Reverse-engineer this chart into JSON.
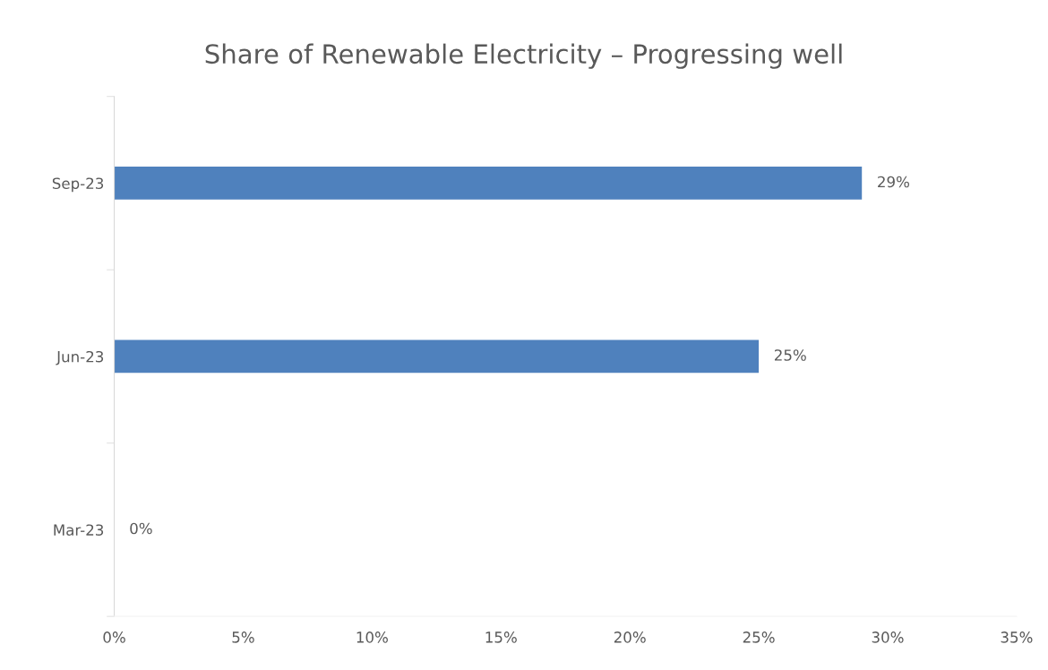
{
  "chart_data": {
    "type": "bar",
    "orientation": "horizontal",
    "title": "Share of Renewable Electricity – Progressing well",
    "categories": [
      "Sep-23",
      "Jun-23",
      "Mar-23"
    ],
    "values": [
      29,
      25,
      0
    ],
    "color": "#4f81bd",
    "value_labels": [
      "29%",
      "25%",
      "0%"
    ],
    "xlim": [
      0,
      35
    ],
    "xticks": [
      {
        "value": 0,
        "label": "0%"
      },
      {
        "value": 5,
        "label": "5%"
      },
      {
        "value": 10,
        "label": "10%"
      },
      {
        "value": 15,
        "label": "15%"
      },
      {
        "value": 20,
        "label": "20%"
      },
      {
        "value": 25,
        "label": "25%"
      },
      {
        "value": 30,
        "label": "30%"
      },
      {
        "value": 35,
        "label": "35%"
      }
    ],
    "grid": false,
    "legend": false
  }
}
